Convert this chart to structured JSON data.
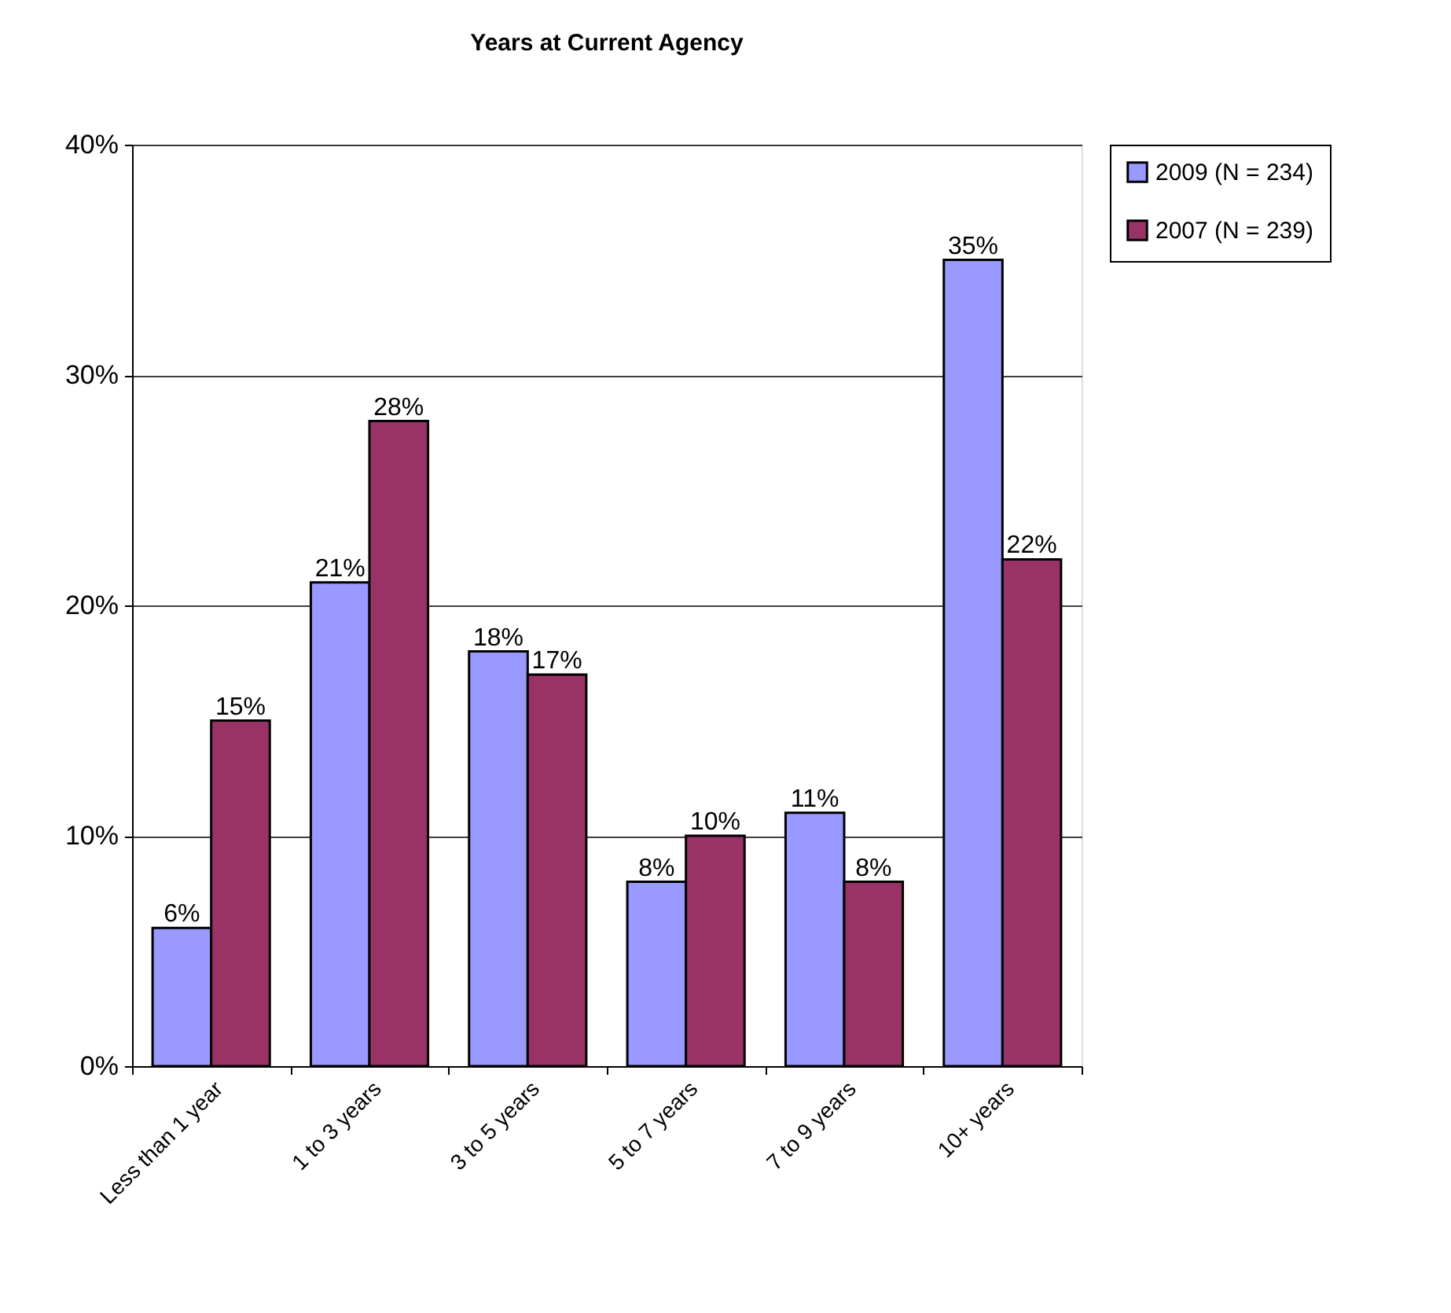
{
  "chart_data": {
    "type": "bar",
    "title": "Years at Current Agency",
    "categories": [
      "Less than 1 year",
      "1 to 3 years",
      "3 to 5 years",
      "5 to 7 years",
      "7 to 9 years",
      "10+ years"
    ],
    "series": [
      {
        "name": "2009 (N = 234)",
        "color": "#9999ff",
        "values": [
          6,
          21,
          18,
          8,
          11,
          35
        ],
        "value_labels": [
          "6%",
          "21%",
          "18%",
          "8%",
          "11%",
          "35%"
        ]
      },
      {
        "name": "2007 (N = 239)",
        "color": "#993366",
        "values": [
          15,
          28,
          17,
          10,
          8,
          22
        ],
        "value_labels": [
          "15%",
          "28%",
          "17%",
          "10%",
          "8%",
          "22%"
        ]
      }
    ],
    "ylim": [
      0,
      40
    ],
    "yticks": [
      {
        "value": 0,
        "label": "0%"
      },
      {
        "value": 10,
        "label": "10%"
      },
      {
        "value": 20,
        "label": "20%"
      },
      {
        "value": 30,
        "label": "30%"
      },
      {
        "value": 40,
        "label": "40%"
      }
    ],
    "grid": "y",
    "legend": "right"
  }
}
